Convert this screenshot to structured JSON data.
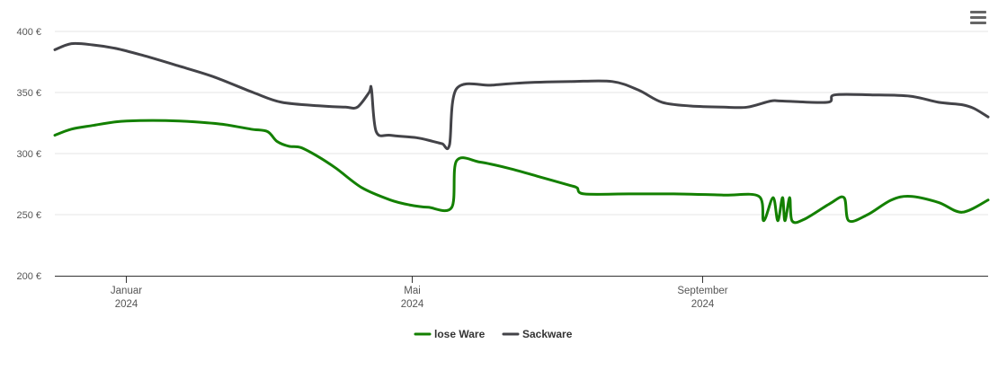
{
  "chart_data": {
    "type": "line",
    "y_unit": "€",
    "ylim": [
      200,
      400
    ],
    "y_ticks": [
      {
        "value": 400,
        "label": "400 €"
      },
      {
        "value": 350,
        "label": "350 €"
      },
      {
        "value": 300,
        "label": "300 €"
      },
      {
        "value": 250,
        "label": "250 €"
      },
      {
        "value": 200,
        "label": "200 €"
      }
    ],
    "xlim": [
      "2023-12-02",
      "2024-12-31"
    ],
    "x_ticks": [
      {
        "date": "2024-01-01",
        "month": "Januar",
        "year": "2024"
      },
      {
        "date": "2024-05-01",
        "month": "Mai",
        "year": "2024"
      },
      {
        "date": "2024-09-01",
        "month": "September",
        "year": "2024"
      }
    ],
    "grid": true,
    "legend_position": "bottom-center",
    "series": [
      {
        "name": "lose Ware",
        "color": "#138000",
        "points": [
          [
            "2023-12-02",
            315
          ],
          [
            "2023-12-09",
            320
          ],
          [
            "2023-12-18",
            323
          ],
          [
            "2023-12-28",
            326
          ],
          [
            "2024-01-07",
            327
          ],
          [
            "2024-01-18",
            327
          ],
          [
            "2024-01-30",
            326
          ],
          [
            "2024-02-11",
            324
          ],
          [
            "2024-02-23",
            320
          ],
          [
            "2024-03-01",
            318
          ],
          [
            "2024-03-05",
            310
          ],
          [
            "2024-03-10",
            306
          ],
          [
            "2024-03-15",
            305
          ],
          [
            "2024-03-22",
            298
          ],
          [
            "2024-03-30",
            288
          ],
          [
            "2024-04-10",
            272
          ],
          [
            "2024-04-22",
            262
          ],
          [
            "2024-04-30",
            258
          ],
          [
            "2024-05-08",
            256
          ],
          [
            "2024-05-18",
            256
          ],
          [
            "2024-05-20",
            294
          ],
          [
            "2024-05-30",
            293
          ],
          [
            "2024-06-11",
            288
          ],
          [
            "2024-06-24",
            281
          ],
          [
            "2024-07-07",
            274
          ],
          [
            "2024-07-10",
            272
          ],
          [
            "2024-07-13",
            267
          ],
          [
            "2024-08-01",
            267
          ],
          [
            "2024-08-20",
            267
          ],
          [
            "2024-09-10",
            266
          ],
          [
            "2024-09-25",
            265
          ],
          [
            "2024-09-27",
            245
          ],
          [
            "2024-10-01",
            264
          ],
          [
            "2024-10-03",
            245
          ],
          [
            "2024-10-05",
            264
          ],
          [
            "2024-10-06",
            245
          ],
          [
            "2024-10-08",
            264
          ],
          [
            "2024-10-09",
            245
          ],
          [
            "2024-10-14",
            246
          ],
          [
            "2024-10-25",
            259
          ],
          [
            "2024-10-31",
            264
          ],
          [
            "2024-11-02",
            245
          ],
          [
            "2024-11-10",
            250
          ],
          [
            "2024-11-20",
            262
          ],
          [
            "2024-11-28",
            265
          ],
          [
            "2024-12-10",
            260
          ],
          [
            "2024-12-20",
            252
          ],
          [
            "2024-12-31",
            262
          ]
        ]
      },
      {
        "name": "Sackware",
        "color": "#434348",
        "points": [
          [
            "2023-12-02",
            385
          ],
          [
            "2023-12-09",
            390
          ],
          [
            "2023-12-18",
            389
          ],
          [
            "2023-12-28",
            386
          ],
          [
            "2024-01-09",
            380
          ],
          [
            "2024-01-23",
            372
          ],
          [
            "2024-02-07",
            363
          ],
          [
            "2024-02-24",
            350
          ],
          [
            "2024-03-07",
            342
          ],
          [
            "2024-03-24",
            339
          ],
          [
            "2024-04-03",
            338
          ],
          [
            "2024-04-08",
            338
          ],
          [
            "2024-04-13",
            350
          ],
          [
            "2024-04-14",
            353
          ],
          [
            "2024-04-16",
            318
          ],
          [
            "2024-04-22",
            315
          ],
          [
            "2024-05-03",
            313
          ],
          [
            "2024-05-10",
            310
          ],
          [
            "2024-05-14",
            308
          ],
          [
            "2024-05-17",
            307
          ],
          [
            "2024-05-20",
            353
          ],
          [
            "2024-06-04",
            356
          ],
          [
            "2024-06-18",
            358
          ],
          [
            "2024-07-08",
            359
          ],
          [
            "2024-07-25",
            359
          ],
          [
            "2024-08-05",
            352
          ],
          [
            "2024-08-15",
            342
          ],
          [
            "2024-08-27",
            339
          ],
          [
            "2024-09-10",
            338
          ],
          [
            "2024-09-20",
            338
          ],
          [
            "2024-09-30",
            343
          ],
          [
            "2024-10-05",
            343
          ],
          [
            "2024-10-24",
            342
          ],
          [
            "2024-10-27",
            348
          ],
          [
            "2024-11-12",
            348
          ],
          [
            "2024-11-28",
            347
          ],
          [
            "2024-12-10",
            342
          ],
          [
            "2024-12-20",
            340
          ],
          [
            "2024-12-25",
            337
          ],
          [
            "2024-12-31",
            330
          ]
        ]
      }
    ]
  },
  "menu": {
    "icon": "hamburger-menu-icon"
  }
}
